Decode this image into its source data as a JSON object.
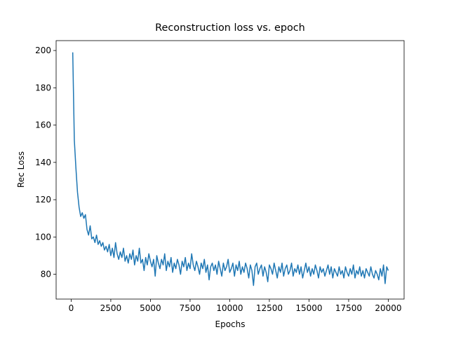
{
  "chart_data": {
    "type": "line",
    "title": "Reconstruction loss vs. epoch",
    "x_label": "Epochs",
    "y_label": "Rec Loss",
    "color": "#1f77b4",
    "x": [
      100,
      200,
      300,
      400,
      500,
      600,
      700,
      800,
      900,
      1000,
      1100,
      1200,
      1300,
      1400,
      1500,
      1600,
      1700,
      1800,
      1900,
      2000,
      2100,
      2200,
      2300,
      2400,
      2500,
      2600,
      2700,
      2800,
      2900,
      3000,
      3100,
      3200,
      3300,
      3400,
      3500,
      3600,
      3700,
      3800,
      3900,
      4000,
      4100,
      4200,
      4300,
      4400,
      4500,
      4600,
      4700,
      4800,
      4900,
      5000,
      5100,
      5200,
      5300,
      5400,
      5500,
      5600,
      5700,
      5800,
      5900,
      6000,
      6100,
      6200,
      6300,
      6400,
      6500,
      6600,
      6700,
      6800,
      6900,
      7000,
      7100,
      7200,
      7300,
      7400,
      7500,
      7600,
      7700,
      7800,
      7900,
      8000,
      8100,
      8200,
      8300,
      8400,
      8500,
      8600,
      8700,
      8800,
      8900,
      9000,
      9100,
      9200,
      9300,
      9400,
      9500,
      9600,
      9700,
      9800,
      9900,
      10000,
      10100,
      10200,
      10300,
      10400,
      10500,
      10600,
      10700,
      10800,
      10900,
      11000,
      11100,
      11200,
      11300,
      11400,
      11500,
      11600,
      11700,
      11800,
      11900,
      12000,
      12100,
      12200,
      12300,
      12400,
      12500,
      12600,
      12700,
      12800,
      12900,
      13000,
      13100,
      13200,
      13300,
      13400,
      13500,
      13600,
      13700,
      13800,
      13900,
      14000,
      14100,
      14200,
      14300,
      14400,
      14500,
      14600,
      14700,
      14800,
      14900,
      15000,
      15100,
      15200,
      15300,
      15400,
      15500,
      15600,
      15700,
      15800,
      15900,
      16000,
      16100,
      16200,
      16300,
      16400,
      16500,
      16600,
      16700,
      16800,
      16900,
      17000,
      17100,
      17200,
      17300,
      17400,
      17500,
      17600,
      17700,
      17800,
      17900,
      18000,
      18100,
      18200,
      18300,
      18400,
      18500,
      18600,
      18700,
      18800,
      18900,
      19000,
      19100,
      19200,
      19300,
      19400,
      19500,
      19600,
      19700,
      19800,
      19900,
      20000
    ],
    "values": [
      199,
      152,
      137,
      124,
      116,
      111,
      113,
      110,
      112,
      104,
      101,
      106,
      99,
      100,
      97,
      101,
      96,
      98,
      95,
      97,
      93,
      95,
      92,
      96,
      90,
      94,
      89,
      97,
      91,
      88,
      92,
      89,
      94,
      87,
      90,
      86,
      91,
      88,
      93,
      85,
      90,
      87,
      94,
      86,
      88,
      82,
      89,
      85,
      91,
      87,
      84,
      88,
      79,
      90,
      86,
      83,
      88,
      85,
      91,
      82,
      87,
      84,
      89,
      81,
      86,
      83,
      88,
      85,
      80,
      87,
      84,
      89,
      82,
      86,
      83,
      91,
      85,
      82,
      87,
      84,
      80,
      86,
      83,
      88,
      81,
      85,
      77,
      84,
      86,
      82,
      85,
      80,
      87,
      83,
      79,
      86,
      82,
      84,
      88,
      81,
      83,
      86,
      79,
      85,
      82,
      87,
      80,
      84,
      81,
      86,
      83,
      78,
      85,
      82,
      74,
      84,
      86,
      80,
      83,
      85,
      79,
      84,
      81,
      76,
      85,
      83,
      80,
      86,
      82,
      78,
      84,
      81,
      86,
      79,
      83,
      85,
      80,
      82,
      86,
      79,
      83,
      81,
      85,
      80,
      84,
      78,
      82,
      86,
      81,
      84,
      79,
      83,
      80,
      85,
      82,
      78,
      84,
      81,
      83,
      79,
      82,
      85,
      80,
      84,
      78,
      83,
      81,
      79,
      84,
      80,
      82,
      78,
      84,
      81,
      79,
      83,
      80,
      85,
      78,
      82,
      80,
      84,
      79,
      82,
      78,
      83,
      81,
      79,
      84,
      80,
      78,
      82,
      80,
      77,
      83,
      79,
      85,
      75,
      84,
      82
    ],
    "xlim": [
      -947.5,
      20997.5
    ],
    "ylim": [
      66.7,
      205.3
    ],
    "xticks": [
      0,
      2500,
      5000,
      7500,
      10000,
      12500,
      15000,
      17500,
      20000
    ],
    "yticks": [
      80,
      100,
      120,
      140,
      160,
      180,
      200
    ]
  }
}
